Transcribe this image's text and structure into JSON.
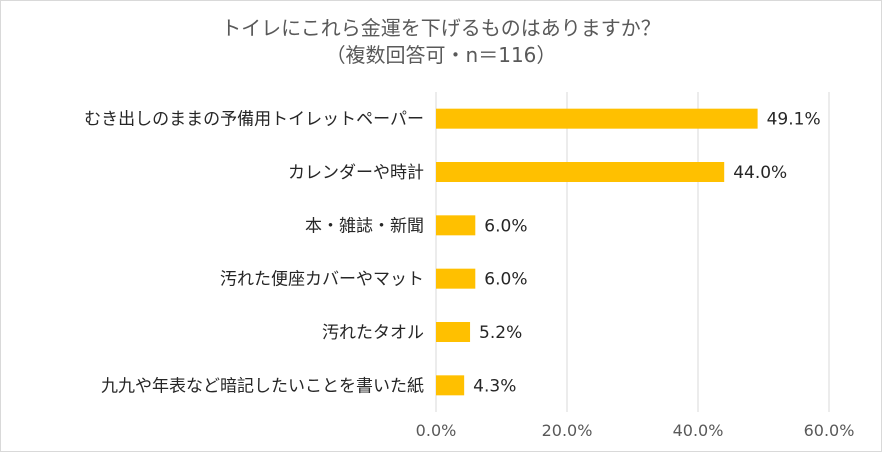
{
  "chart_data": {
    "type": "bar",
    "orientation": "horizontal",
    "title": "トイレにこれら金運を下げるものはありますか？",
    "subtitle": "（複数回答可・n＝116）",
    "categories": [
      "むき出しのままの予備用トイレットペーパー",
      "カレンダーや時計",
      "本・雑誌・新聞",
      "汚れた便座カバーやマット",
      "汚れたタオル",
      "九九や年表など暗記したいことを書いた紙"
    ],
    "values": [
      49.1,
      44.0,
      6.0,
      6.0,
      5.2,
      4.3
    ],
    "data_labels": [
      "49.1%",
      "44.0%",
      "6.0%",
      "6.0%",
      "5.2%",
      "4.3%"
    ],
    "xlim": [
      0,
      60
    ],
    "xticks": [
      0,
      20,
      40,
      60
    ],
    "xtick_labels": [
      "0.0%",
      "20.0%",
      "40.0%",
      "60.0%"
    ],
    "grid": true,
    "legend": "none",
    "bar_color": "#FFC000",
    "grid_color": "#d9d9d9"
  }
}
